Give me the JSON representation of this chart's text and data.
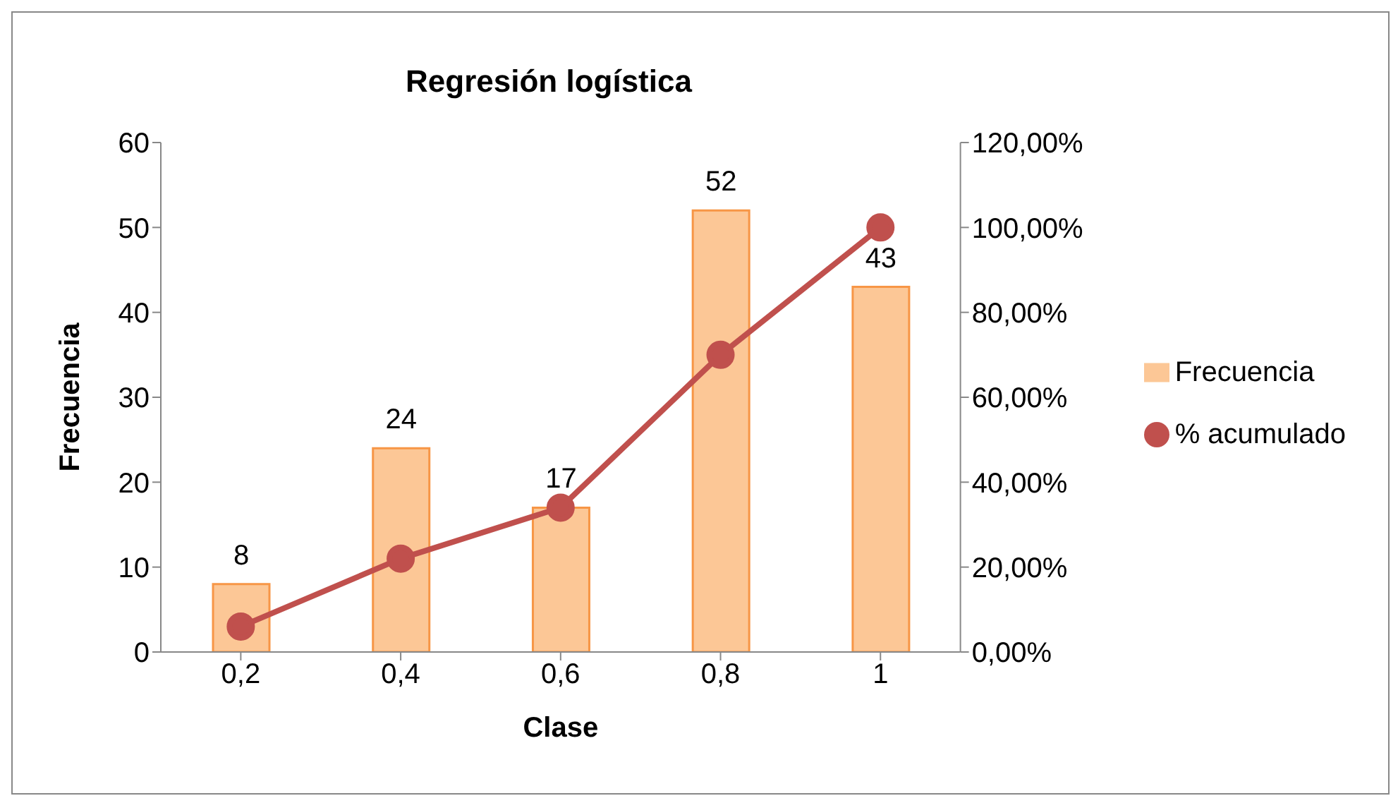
{
  "chart_data": {
    "type": "bar",
    "title": "Regresión logística",
    "xlabel": "Clase",
    "ylabel": "Frecuencia",
    "categories": [
      "0,2",
      "0,4",
      "0,6",
      "0,8",
      "1"
    ],
    "series": [
      {
        "name": "Frecuencia",
        "color": "#fcc796",
        "values": [
          8,
          24,
          17,
          52,
          43
        ],
        "value_labels": [
          "8",
          "24",
          "17",
          "52",
          "43"
        ]
      },
      {
        "name": "% acumulado",
        "type": "line",
        "axis": "y2",
        "color": "#c0504d",
        "values": [
          6,
          22,
          34,
          70,
          100
        ]
      }
    ],
    "ylim": [
      0,
      60
    ],
    "yticks": [
      0,
      10,
      20,
      30,
      40,
      50,
      60
    ],
    "y2lim": [
      0,
      120
    ],
    "y2ticks": [
      {
        "value": 0,
        "label": "0,00%"
      },
      {
        "value": 20,
        "label": "20,00%"
      },
      {
        "value": 40,
        "label": "40,00%"
      },
      {
        "value": 60,
        "label": "60,00%"
      },
      {
        "value": 80,
        "label": "80,00%"
      },
      {
        "value": 100,
        "label": "100,00%"
      },
      {
        "value": 120,
        "label": "120,00%"
      }
    ],
    "grid": false,
    "legend": "right",
    "marker": "circle",
    "line_style": "solid"
  }
}
